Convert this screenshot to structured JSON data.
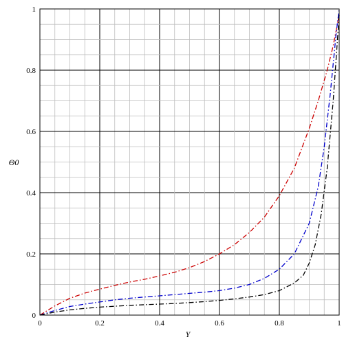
{
  "chart_data": {
    "type": "line",
    "title": "",
    "xlabel": "Y",
    "ylabel": "Θ0",
    "xlim": [
      0,
      1
    ],
    "ylim": [
      0,
      1
    ],
    "grid": true,
    "legend": "none",
    "x_ticks": [
      "0",
      "0.2",
      "0.4",
      "0.6",
      "0.8",
      "1"
    ],
    "y_ticks": [
      "0",
      "0.2",
      "0.4",
      "0.6",
      "0.8",
      "1"
    ],
    "x_tick_values": [
      0,
      0.2,
      0.4,
      0.6,
      0.8,
      1
    ],
    "y_tick_values": [
      0,
      0.2,
      0.4,
      0.6,
      0.8,
      1
    ],
    "series": [
      {
        "color": "#cc0000",
        "line_style": "dash-dot",
        "x": [
          0,
          0.05,
          0.1,
          0.15,
          0.2,
          0.25,
          0.3,
          0.35,
          0.4,
          0.45,
          0.5,
          0.55,
          0.6,
          0.65,
          0.7,
          0.75,
          0.8,
          0.85,
          0.9,
          0.93,
          0.96,
          0.98,
          1
        ],
        "y": [
          0,
          0.03,
          0.055,
          0.072,
          0.085,
          0.097,
          0.108,
          0.117,
          0.128,
          0.14,
          0.155,
          0.175,
          0.2,
          0.23,
          0.27,
          0.32,
          0.39,
          0.48,
          0.61,
          0.7,
          0.8,
          0.88,
          0.98
        ]
      },
      {
        "color": "#0000cc",
        "line_style": "dash-dot",
        "x": [
          0,
          0.05,
          0.1,
          0.15,
          0.2,
          0.25,
          0.3,
          0.35,
          0.4,
          0.45,
          0.5,
          0.55,
          0.6,
          0.65,
          0.7,
          0.75,
          0.8,
          0.85,
          0.9,
          0.93,
          0.95,
          0.97,
          0.99,
          1
        ],
        "y": [
          0,
          0.015,
          0.028,
          0.036,
          0.043,
          0.05,
          0.055,
          0.059,
          0.063,
          0.067,
          0.071,
          0.075,
          0.08,
          0.088,
          0.1,
          0.12,
          0.15,
          0.2,
          0.3,
          0.42,
          0.55,
          0.72,
          0.92,
          1.0
        ]
      },
      {
        "color": "#000000",
        "line_style": "dash-dot",
        "x": [
          0,
          0.05,
          0.1,
          0.15,
          0.2,
          0.25,
          0.3,
          0.35,
          0.4,
          0.45,
          0.5,
          0.55,
          0.6,
          0.65,
          0.7,
          0.75,
          0.8,
          0.85,
          0.88,
          0.9,
          0.92,
          0.94,
          0.96,
          0.98,
          1
        ],
        "y": [
          0,
          0.01,
          0.017,
          0.022,
          0.026,
          0.029,
          0.032,
          0.034,
          0.036,
          0.038,
          0.041,
          0.044,
          0.048,
          0.053,
          0.059,
          0.067,
          0.08,
          0.105,
          0.13,
          0.17,
          0.23,
          0.33,
          0.48,
          0.7,
          0.98
        ]
      }
    ]
  }
}
